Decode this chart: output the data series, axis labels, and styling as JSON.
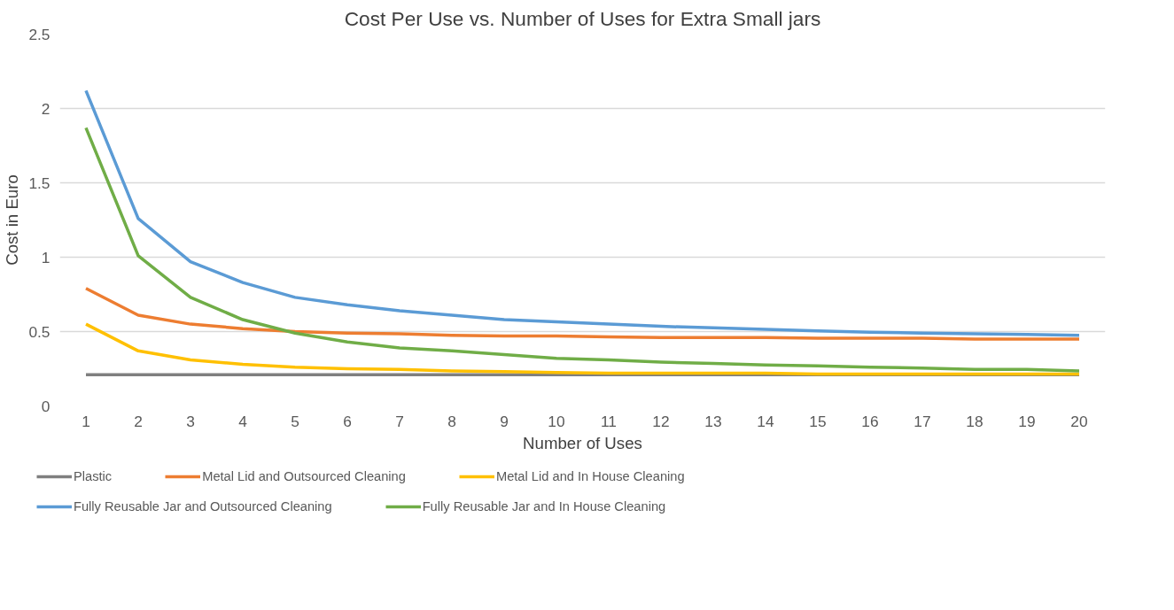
{
  "chart_data": {
    "type": "line",
    "title": "Cost Per Use vs. Number of Uses for Extra Small jars",
    "xlabel": "Number of Uses",
    "ylabel": "Cost in Euro",
    "x": [
      1,
      2,
      3,
      4,
      5,
      6,
      7,
      8,
      9,
      10,
      11,
      12,
      13,
      14,
      15,
      16,
      17,
      18,
      19,
      20
    ],
    "xlim": [
      0.5,
      20.5
    ],
    "xticks": [
      1,
      2,
      3,
      4,
      5,
      6,
      7,
      8,
      9,
      10,
      11,
      12,
      13,
      14,
      15,
      16,
      17,
      18,
      19,
      20
    ],
    "ylim": [
      0,
      2.5
    ],
    "yticks": [
      0,
      0.5,
      1,
      1.5,
      2,
      2.5
    ],
    "grid": "y",
    "legend": "bottom",
    "marker": "none",
    "line_style": "solid",
    "series": [
      {
        "name": "Plastic",
        "color": "#7f7f7f",
        "values": [
          0.21,
          0.21,
          0.21,
          0.21,
          0.21,
          0.21,
          0.21,
          0.21,
          0.21,
          0.21,
          0.21,
          0.21,
          0.21,
          0.21,
          0.21,
          0.21,
          0.21,
          0.21,
          0.21,
          0.21
        ]
      },
      {
        "name": "Metal Lid and Outsourced Cleaning",
        "color": "#ed7d31",
        "values": [
          0.79,
          0.61,
          0.55,
          0.52,
          0.5,
          0.49,
          0.485,
          0.475,
          0.47,
          0.47,
          0.465,
          0.46,
          0.46,
          0.46,
          0.455,
          0.455,
          0.455,
          0.45,
          0.45,
          0.45
        ]
      },
      {
        "name": "Metal Lid and In House Cleaning",
        "color": "#ffc000",
        "values": [
          0.55,
          0.37,
          0.31,
          0.28,
          0.26,
          0.25,
          0.245,
          0.235,
          0.23,
          0.225,
          0.22,
          0.22,
          0.22,
          0.22,
          0.215,
          0.215,
          0.215,
          0.215,
          0.215,
          0.215
        ]
      },
      {
        "name": "Fully Reusable Jar and Outsourced Cleaning",
        "color": "#5b9bd5",
        "values": [
          2.12,
          1.26,
          0.97,
          0.83,
          0.73,
          0.68,
          0.64,
          0.61,
          0.58,
          0.565,
          0.55,
          0.535,
          0.525,
          0.515,
          0.505,
          0.495,
          0.49,
          0.485,
          0.48,
          0.475
        ]
      },
      {
        "name": "Fully Reusable Jar and In House Cleaning",
        "color": "#70ad47",
        "values": [
          1.87,
          1.01,
          0.73,
          0.58,
          0.49,
          0.43,
          0.39,
          0.37,
          0.345,
          0.32,
          0.31,
          0.295,
          0.285,
          0.275,
          0.27,
          0.26,
          0.255,
          0.245,
          0.245,
          0.235
        ]
      }
    ]
  }
}
